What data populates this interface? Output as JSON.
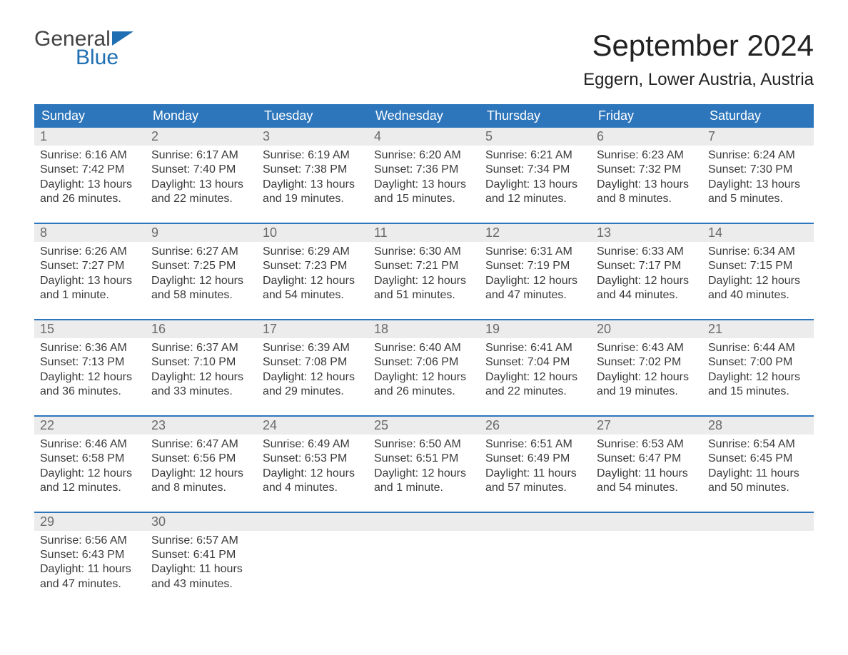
{
  "colors": {
    "header_bg": "#2d76bb",
    "header_text": "#ffffff",
    "daynum_bg": "#ececec",
    "daynum_text": "#6a6a6a",
    "body_text": "#3a3a3a",
    "week_border": "#2d76bb",
    "logo_gray": "#444444",
    "logo_blue": "#1f6fb2",
    "page_bg": "#ffffff"
  },
  "logo": {
    "line1": "General",
    "line2": "Blue"
  },
  "title": "September 2024",
  "location": "Eggern, Lower Austria, Austria",
  "weekdays": [
    "Sunday",
    "Monday",
    "Tuesday",
    "Wednesday",
    "Thursday",
    "Friday",
    "Saturday"
  ],
  "weeks": [
    [
      {
        "n": "1",
        "sunrise": "Sunrise: 6:16 AM",
        "sunset": "Sunset: 7:42 PM",
        "dl1": "Daylight: 13 hours",
        "dl2": "and 26 minutes."
      },
      {
        "n": "2",
        "sunrise": "Sunrise: 6:17 AM",
        "sunset": "Sunset: 7:40 PM",
        "dl1": "Daylight: 13 hours",
        "dl2": "and 22 minutes."
      },
      {
        "n": "3",
        "sunrise": "Sunrise: 6:19 AM",
        "sunset": "Sunset: 7:38 PM",
        "dl1": "Daylight: 13 hours",
        "dl2": "and 19 minutes."
      },
      {
        "n": "4",
        "sunrise": "Sunrise: 6:20 AM",
        "sunset": "Sunset: 7:36 PM",
        "dl1": "Daylight: 13 hours",
        "dl2": "and 15 minutes."
      },
      {
        "n": "5",
        "sunrise": "Sunrise: 6:21 AM",
        "sunset": "Sunset: 7:34 PM",
        "dl1": "Daylight: 13 hours",
        "dl2": "and 12 minutes."
      },
      {
        "n": "6",
        "sunrise": "Sunrise: 6:23 AM",
        "sunset": "Sunset: 7:32 PM",
        "dl1": "Daylight: 13 hours",
        "dl2": "and 8 minutes."
      },
      {
        "n": "7",
        "sunrise": "Sunrise: 6:24 AM",
        "sunset": "Sunset: 7:30 PM",
        "dl1": "Daylight: 13 hours",
        "dl2": "and 5 minutes."
      }
    ],
    [
      {
        "n": "8",
        "sunrise": "Sunrise: 6:26 AM",
        "sunset": "Sunset: 7:27 PM",
        "dl1": "Daylight: 13 hours",
        "dl2": "and 1 minute."
      },
      {
        "n": "9",
        "sunrise": "Sunrise: 6:27 AM",
        "sunset": "Sunset: 7:25 PM",
        "dl1": "Daylight: 12 hours",
        "dl2": "and 58 minutes."
      },
      {
        "n": "10",
        "sunrise": "Sunrise: 6:29 AM",
        "sunset": "Sunset: 7:23 PM",
        "dl1": "Daylight: 12 hours",
        "dl2": "and 54 minutes."
      },
      {
        "n": "11",
        "sunrise": "Sunrise: 6:30 AM",
        "sunset": "Sunset: 7:21 PM",
        "dl1": "Daylight: 12 hours",
        "dl2": "and 51 minutes."
      },
      {
        "n": "12",
        "sunrise": "Sunrise: 6:31 AM",
        "sunset": "Sunset: 7:19 PM",
        "dl1": "Daylight: 12 hours",
        "dl2": "and 47 minutes."
      },
      {
        "n": "13",
        "sunrise": "Sunrise: 6:33 AM",
        "sunset": "Sunset: 7:17 PM",
        "dl1": "Daylight: 12 hours",
        "dl2": "and 44 minutes."
      },
      {
        "n": "14",
        "sunrise": "Sunrise: 6:34 AM",
        "sunset": "Sunset: 7:15 PM",
        "dl1": "Daylight: 12 hours",
        "dl2": "and 40 minutes."
      }
    ],
    [
      {
        "n": "15",
        "sunrise": "Sunrise: 6:36 AM",
        "sunset": "Sunset: 7:13 PM",
        "dl1": "Daylight: 12 hours",
        "dl2": "and 36 minutes."
      },
      {
        "n": "16",
        "sunrise": "Sunrise: 6:37 AM",
        "sunset": "Sunset: 7:10 PM",
        "dl1": "Daylight: 12 hours",
        "dl2": "and 33 minutes."
      },
      {
        "n": "17",
        "sunrise": "Sunrise: 6:39 AM",
        "sunset": "Sunset: 7:08 PM",
        "dl1": "Daylight: 12 hours",
        "dl2": "and 29 minutes."
      },
      {
        "n": "18",
        "sunrise": "Sunrise: 6:40 AM",
        "sunset": "Sunset: 7:06 PM",
        "dl1": "Daylight: 12 hours",
        "dl2": "and 26 minutes."
      },
      {
        "n": "19",
        "sunrise": "Sunrise: 6:41 AM",
        "sunset": "Sunset: 7:04 PM",
        "dl1": "Daylight: 12 hours",
        "dl2": "and 22 minutes."
      },
      {
        "n": "20",
        "sunrise": "Sunrise: 6:43 AM",
        "sunset": "Sunset: 7:02 PM",
        "dl1": "Daylight: 12 hours",
        "dl2": "and 19 minutes."
      },
      {
        "n": "21",
        "sunrise": "Sunrise: 6:44 AM",
        "sunset": "Sunset: 7:00 PM",
        "dl1": "Daylight: 12 hours",
        "dl2": "and 15 minutes."
      }
    ],
    [
      {
        "n": "22",
        "sunrise": "Sunrise: 6:46 AM",
        "sunset": "Sunset: 6:58 PM",
        "dl1": "Daylight: 12 hours",
        "dl2": "and 12 minutes."
      },
      {
        "n": "23",
        "sunrise": "Sunrise: 6:47 AM",
        "sunset": "Sunset: 6:56 PM",
        "dl1": "Daylight: 12 hours",
        "dl2": "and 8 minutes."
      },
      {
        "n": "24",
        "sunrise": "Sunrise: 6:49 AM",
        "sunset": "Sunset: 6:53 PM",
        "dl1": "Daylight: 12 hours",
        "dl2": "and 4 minutes."
      },
      {
        "n": "25",
        "sunrise": "Sunrise: 6:50 AM",
        "sunset": "Sunset: 6:51 PM",
        "dl1": "Daylight: 12 hours",
        "dl2": "and 1 minute."
      },
      {
        "n": "26",
        "sunrise": "Sunrise: 6:51 AM",
        "sunset": "Sunset: 6:49 PM",
        "dl1": "Daylight: 11 hours",
        "dl2": "and 57 minutes."
      },
      {
        "n": "27",
        "sunrise": "Sunrise: 6:53 AM",
        "sunset": "Sunset: 6:47 PM",
        "dl1": "Daylight: 11 hours",
        "dl2": "and 54 minutes."
      },
      {
        "n": "28",
        "sunrise": "Sunrise: 6:54 AM",
        "sunset": "Sunset: 6:45 PM",
        "dl1": "Daylight: 11 hours",
        "dl2": "and 50 minutes."
      }
    ],
    [
      {
        "n": "29",
        "sunrise": "Sunrise: 6:56 AM",
        "sunset": "Sunset: 6:43 PM",
        "dl1": "Daylight: 11 hours",
        "dl2": "and 47 minutes."
      },
      {
        "n": "30",
        "sunrise": "Sunrise: 6:57 AM",
        "sunset": "Sunset: 6:41 PM",
        "dl1": "Daylight: 11 hours",
        "dl2": "and 43 minutes."
      },
      {
        "n": "",
        "sunrise": "",
        "sunset": "",
        "dl1": "",
        "dl2": ""
      },
      {
        "n": "",
        "sunrise": "",
        "sunset": "",
        "dl1": "",
        "dl2": ""
      },
      {
        "n": "",
        "sunrise": "",
        "sunset": "",
        "dl1": "",
        "dl2": ""
      },
      {
        "n": "",
        "sunrise": "",
        "sunset": "",
        "dl1": "",
        "dl2": ""
      },
      {
        "n": "",
        "sunrise": "",
        "sunset": "",
        "dl1": "",
        "dl2": ""
      }
    ]
  ]
}
